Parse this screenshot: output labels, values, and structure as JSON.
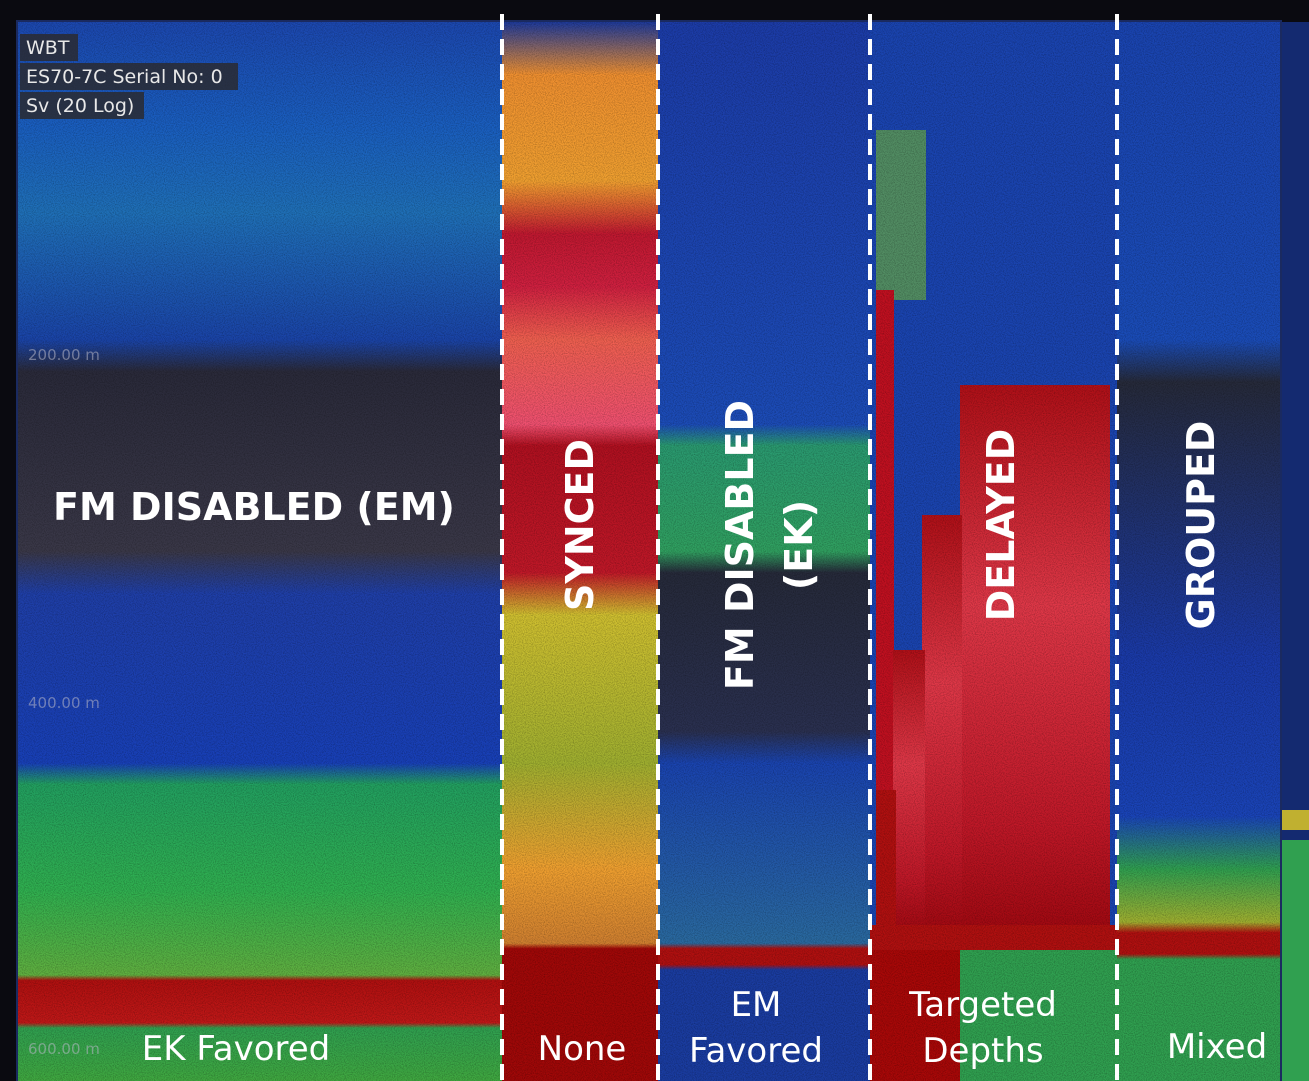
{
  "overlay": {
    "lines": [
      "WBT",
      "ES70-7C Serial No: 0",
      "Sv (20 Log)"
    ]
  },
  "depth_labels": [
    "200.00 m",
    "400.00 m",
    "600.00 m"
  ],
  "sections": [
    {
      "title": [
        "FM DISABLED (EM)"
      ],
      "caption": [
        "EK Favored"
      ]
    },
    {
      "title": [
        "SYNCED"
      ],
      "caption": [
        "None"
      ]
    },
    {
      "title": [
        "FM DISABLED",
        "(EK)"
      ],
      "caption": [
        "EM",
        "Favored"
      ]
    },
    {
      "title": [
        "DELAYED"
      ],
      "caption": [
        "Targeted",
        "Depths"
      ]
    },
    {
      "title": [
        "GROUPED"
      ],
      "caption": [
        "Mixed"
      ]
    }
  ]
}
